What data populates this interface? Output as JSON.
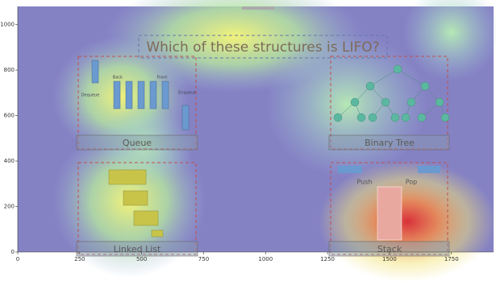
{
  "chart_data": {
    "type": "heatmap",
    "title": "Which of these structures is LIFO?",
    "panels": [
      "Queue",
      "Binary Tree",
      "Linked List",
      "Stack"
    ],
    "labels": {
      "dequeue": "Dequeue",
      "enqueue": "Enqueue",
      "back": "Back",
      "front": "Front",
      "push": "Push",
      "pop": "Pop"
    },
    "xlim": [
      0,
      1920
    ],
    "ylim": [
      0,
      1080
    ],
    "xticks": [
      0,
      250,
      500,
      750,
      1000,
      1250,
      1500,
      1750
    ],
    "yticks": [
      0,
      200,
      400,
      600,
      800,
      1000
    ]
  }
}
